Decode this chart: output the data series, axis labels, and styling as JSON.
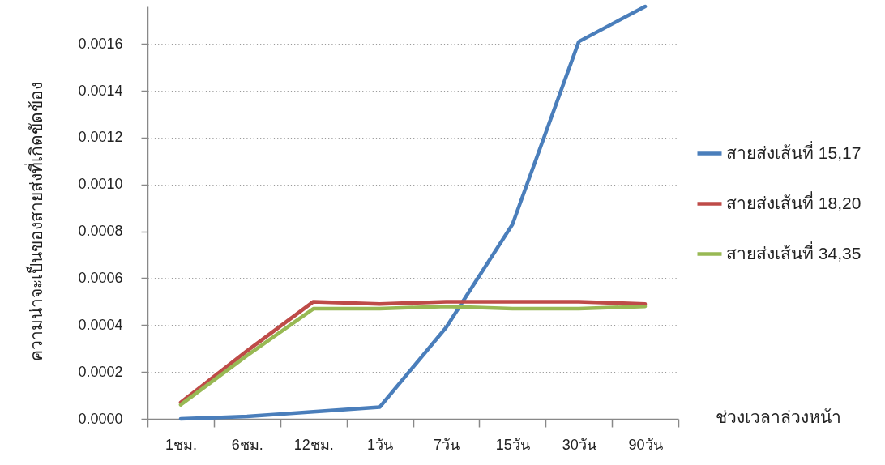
{
  "chart_data": {
    "type": "line",
    "xlabel": "ช่วงเวลาล่วงหน้า",
    "ylabel": "ความน่าจะเป็นของสายส่งที่เกิดขัดข้อง",
    "categories": [
      "1ชม.",
      "6ชม.",
      "12ชม.",
      "1วัน",
      "7วัน",
      "15วัน",
      "30วัน",
      "90วัน"
    ],
    "series": [
      {
        "name": "สายส่งเส้นที่ 15,17",
        "color": "#4a7ebb",
        "values": [
          0,
          1e-05,
          3e-05,
          5e-05,
          0.00039,
          0.00083,
          0.00161,
          0.00176
        ]
      },
      {
        "name": "สายส่งเส้นที่ 18,20",
        "color": "#be4b48",
        "values": [
          7e-05,
          0.00029,
          0.0005,
          0.00049,
          0.0005,
          0.0005,
          0.0005,
          0.00049
        ]
      },
      {
        "name": "สายส่งเส้นที่ 34,35",
        "color": "#98b954",
        "values": [
          6e-05,
          0.00027,
          0.00047,
          0.00047,
          0.00048,
          0.00047,
          0.00047,
          0.00048
        ]
      }
    ],
    "ylim": [
      0,
      0.00176
    ],
    "yticks": [
      {
        "value": 0,
        "label": "0.0000"
      },
      {
        "value": 0.0002,
        "label": "0.0002"
      },
      {
        "value": 0.0004,
        "label": "0.0004"
      },
      {
        "value": 0.0006,
        "label": "0.0006"
      },
      {
        "value": 0.0008,
        "label": "0.0008"
      },
      {
        "value": 0.001,
        "label": "0.0010"
      },
      {
        "value": 0.0012,
        "label": "0.0012"
      },
      {
        "value": 0.0014,
        "label": "0.0014"
      },
      {
        "value": 0.0016,
        "label": "0.0016"
      }
    ],
    "grid": "y",
    "legend": "right"
  }
}
